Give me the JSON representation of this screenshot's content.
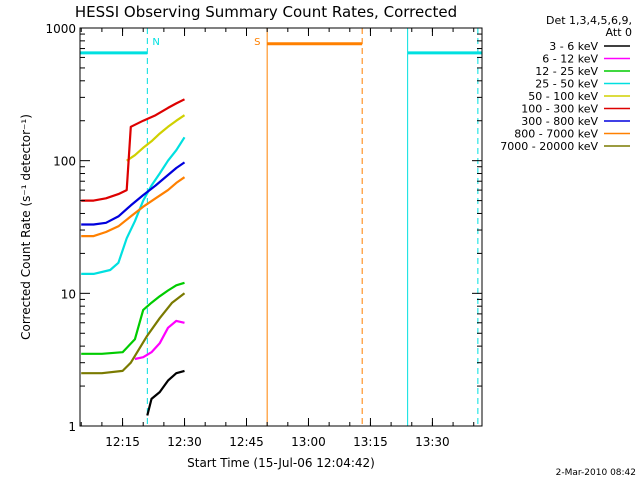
{
  "chart_data": {
    "type": "line",
    "title": "HESSI Observing Summary Count Rates, Corrected",
    "ylabel": "Corrected Count Rate (s⁻¹ detector⁻¹)",
    "xlabel": "Start Time (15-Jul-06 12:04:42)",
    "y_scale": "log",
    "ylim": [
      1,
      1000
    ],
    "xlim": [
      "12:04:42",
      "13:42:00"
    ],
    "x_ticks": [
      "12:15",
      "12:30",
      "12:45",
      "13:00",
      "13:15",
      "13:30"
    ],
    "y_ticks": [
      "1",
      "10",
      "100",
      "1000"
    ],
    "legend_header": [
      "Det 1,3,4,5,6,9,",
      "Att 0"
    ],
    "legend_position": "right",
    "series": [
      {
        "name": "3 - 6 keV",
        "color": "#000000",
        "points": [
          [
            "12:21",
            1.2
          ],
          [
            "12:22",
            1.6
          ],
          [
            "12:24",
            1.8
          ],
          [
            "12:26",
            2.2
          ],
          [
            "12:28",
            2.5
          ],
          [
            "12:30",
            2.6
          ]
        ]
      },
      {
        "name": "6 - 12 keV",
        "color": "#ff00ff",
        "points": [
          [
            "12:18",
            3.2
          ],
          [
            "12:20",
            3.3
          ],
          [
            "12:22",
            3.6
          ],
          [
            "12:24",
            4.2
          ],
          [
            "12:26",
            5.5
          ],
          [
            "12:28",
            6.2
          ],
          [
            "12:30",
            6.0
          ]
        ]
      },
      {
        "name": "12 - 25 keV",
        "color": "#00cc00",
        "points": [
          [
            "12:05",
            3.5
          ],
          [
            "12:10",
            3.5
          ],
          [
            "12:15",
            3.6
          ],
          [
            "12:18",
            4.5
          ],
          [
            "12:20",
            7.5
          ],
          [
            "12:22",
            8.5
          ],
          [
            "12:24",
            9.5
          ],
          [
            "12:26",
            10.5
          ],
          [
            "12:28",
            11.5
          ],
          [
            "12:30",
            12.0
          ]
        ]
      },
      {
        "name": "25 - 50 keV",
        "color": "#00e0e0",
        "points": [
          [
            "12:05",
            14
          ],
          [
            "12:08",
            14
          ],
          [
            "12:12",
            15
          ],
          [
            "12:14",
            17
          ],
          [
            "12:16",
            26
          ],
          [
            "12:18",
            35
          ],
          [
            "12:20",
            50
          ],
          [
            "12:22",
            65
          ],
          [
            "12:24",
            80
          ],
          [
            "12:26",
            100
          ],
          [
            "12:28",
            120
          ],
          [
            "12:30",
            150
          ]
        ]
      },
      {
        "name": "50 - 100 keV",
        "color": "#d0d000",
        "points": [
          [
            "12:16",
            100
          ],
          [
            "12:18",
            110
          ],
          [
            "12:20",
            125
          ],
          [
            "12:22",
            140
          ],
          [
            "12:24",
            160
          ],
          [
            "12:26",
            180
          ],
          [
            "12:28",
            200
          ],
          [
            "12:30",
            220
          ]
        ]
      },
      {
        "name": "100 - 300 keV",
        "color": "#dd0000",
        "points": [
          [
            "12:05",
            50
          ],
          [
            "12:08",
            50
          ],
          [
            "12:11",
            52
          ],
          [
            "12:14",
            56
          ],
          [
            "12:16",
            60
          ],
          [
            "12:17",
            180
          ],
          [
            "12:20",
            200
          ],
          [
            "12:23",
            220
          ],
          [
            "12:26",
            250
          ],
          [
            "12:28",
            270
          ],
          [
            "12:30",
            290
          ]
        ]
      },
      {
        "name": "300 - 800 keV",
        "color": "#0000dd",
        "points": [
          [
            "12:05",
            33
          ],
          [
            "12:08",
            33
          ],
          [
            "12:11",
            34
          ],
          [
            "12:14",
            38
          ],
          [
            "12:17",
            46
          ],
          [
            "12:20",
            55
          ],
          [
            "12:23",
            65
          ],
          [
            "12:26",
            78
          ],
          [
            "12:28",
            88
          ],
          [
            "12:30",
            97
          ]
        ]
      },
      {
        "name": "800 - 7000 keV",
        "color": "#ff8000",
        "points": [
          [
            "12:05",
            27
          ],
          [
            "12:08",
            27
          ],
          [
            "12:11",
            29
          ],
          [
            "12:14",
            32
          ],
          [
            "12:17",
            38
          ],
          [
            "12:20",
            45
          ],
          [
            "12:23",
            52
          ],
          [
            "12:26",
            60
          ],
          [
            "12:28",
            68
          ],
          [
            "12:30",
            75
          ]
        ]
      },
      {
        "name": "7000 - 20000 keV",
        "color": "#7a7a00",
        "points": [
          [
            "12:05",
            2.5
          ],
          [
            "12:10",
            2.5
          ],
          [
            "12:15",
            2.6
          ],
          [
            "12:17",
            3.0
          ],
          [
            "12:19",
            3.8
          ],
          [
            "12:21",
            4.8
          ],
          [
            "12:24",
            6.5
          ],
          [
            "12:27",
            8.5
          ],
          [
            "12:30",
            10.0
          ]
        ]
      }
    ],
    "annotations": [
      {
        "type": "night-bar",
        "color": "#00e0e0",
        "y": 650,
        "start": "12:04:42",
        "end": "12:21:00"
      },
      {
        "type": "night-bar",
        "color": "#00e0e0",
        "y": 650,
        "start": "13:24:00",
        "end": "13:42:00"
      },
      {
        "type": "saa-bar",
        "color": "#ff8000",
        "y": 760,
        "start": "12:50:00",
        "end": "13:13:00"
      },
      {
        "type": "vline",
        "style": "dashed",
        "color": "#00e0e0",
        "x": "12:21:00",
        "label": "N"
      },
      {
        "type": "vline",
        "style": "solid",
        "color": "#ff8000",
        "x": "12:50:00",
        "label": "S"
      },
      {
        "type": "vline",
        "style": "dashed",
        "color": "#ff8000",
        "x": "13:13:00"
      },
      {
        "type": "vline",
        "style": "solid",
        "color": "#00e0e0",
        "x": "13:24:00"
      },
      {
        "type": "vline",
        "style": "dashed",
        "color": "#00e0e0",
        "x": "13:41:00"
      }
    ]
  },
  "footer": {
    "date_stamp": "2-Mar-2010 08:42"
  }
}
